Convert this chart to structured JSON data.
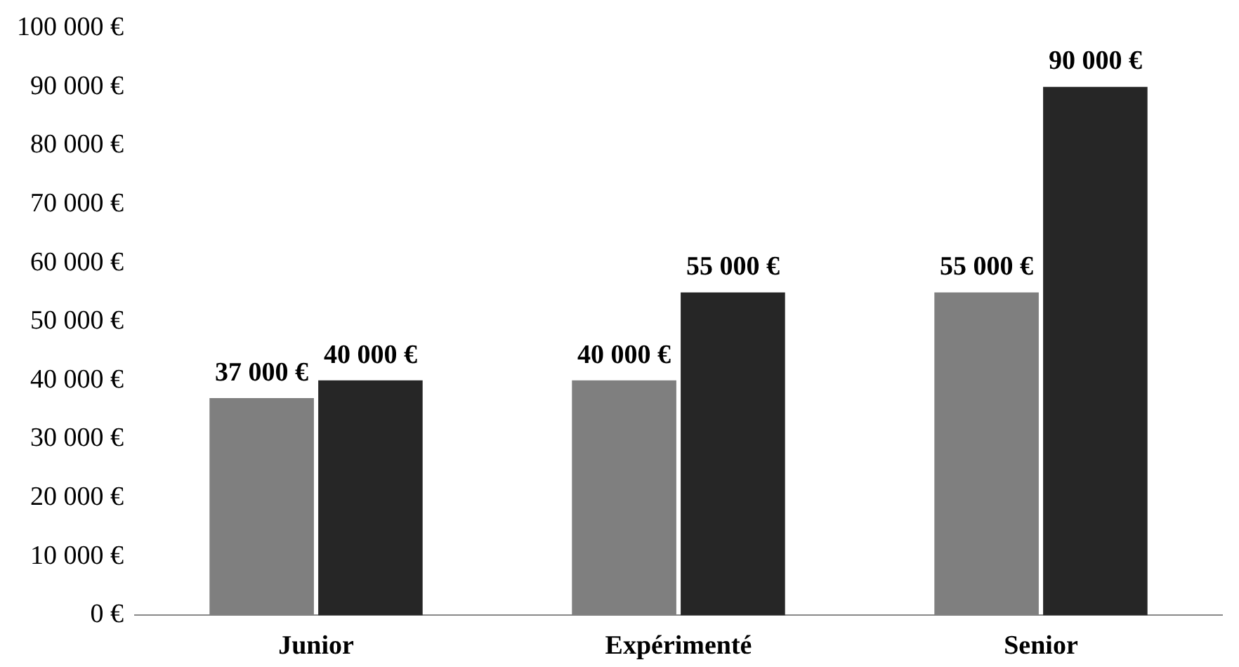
{
  "chart_data": {
    "type": "bar",
    "categories": [
      "Junior",
      "Expérimenté",
      "Senior"
    ],
    "series": [
      {
        "color": "#7f7f7f",
        "values": [
          37000,
          40000,
          55000
        ],
        "value_labels": [
          "37 000 €",
          "40 000 €",
          "55 000 €"
        ]
      },
      {
        "color": "#262626",
        "values": [
          40000,
          55000,
          90000
        ],
        "value_labels": [
          "40 000 €",
          "55 000 €",
          "90 000 €"
        ]
      }
    ],
    "ylim": [
      0,
      100000
    ],
    "yticks": [
      {
        "value": 0,
        "label": "0 €"
      },
      {
        "value": 10000,
        "label": "10 000 €"
      },
      {
        "value": 20000,
        "label": "20 000 €"
      },
      {
        "value": 30000,
        "label": "30 000 €"
      },
      {
        "value": 40000,
        "label": "40 000 €"
      },
      {
        "value": 50000,
        "label": "50 000 €"
      },
      {
        "value": 60000,
        "label": "60 000 €"
      },
      {
        "value": 70000,
        "label": "70 000 €"
      },
      {
        "value": 80000,
        "label": "80 000 €"
      },
      {
        "value": 90000,
        "label": "90 000 €"
      },
      {
        "value": 100000,
        "label": "100 000 €"
      }
    ],
    "grid": false,
    "legend": false
  }
}
